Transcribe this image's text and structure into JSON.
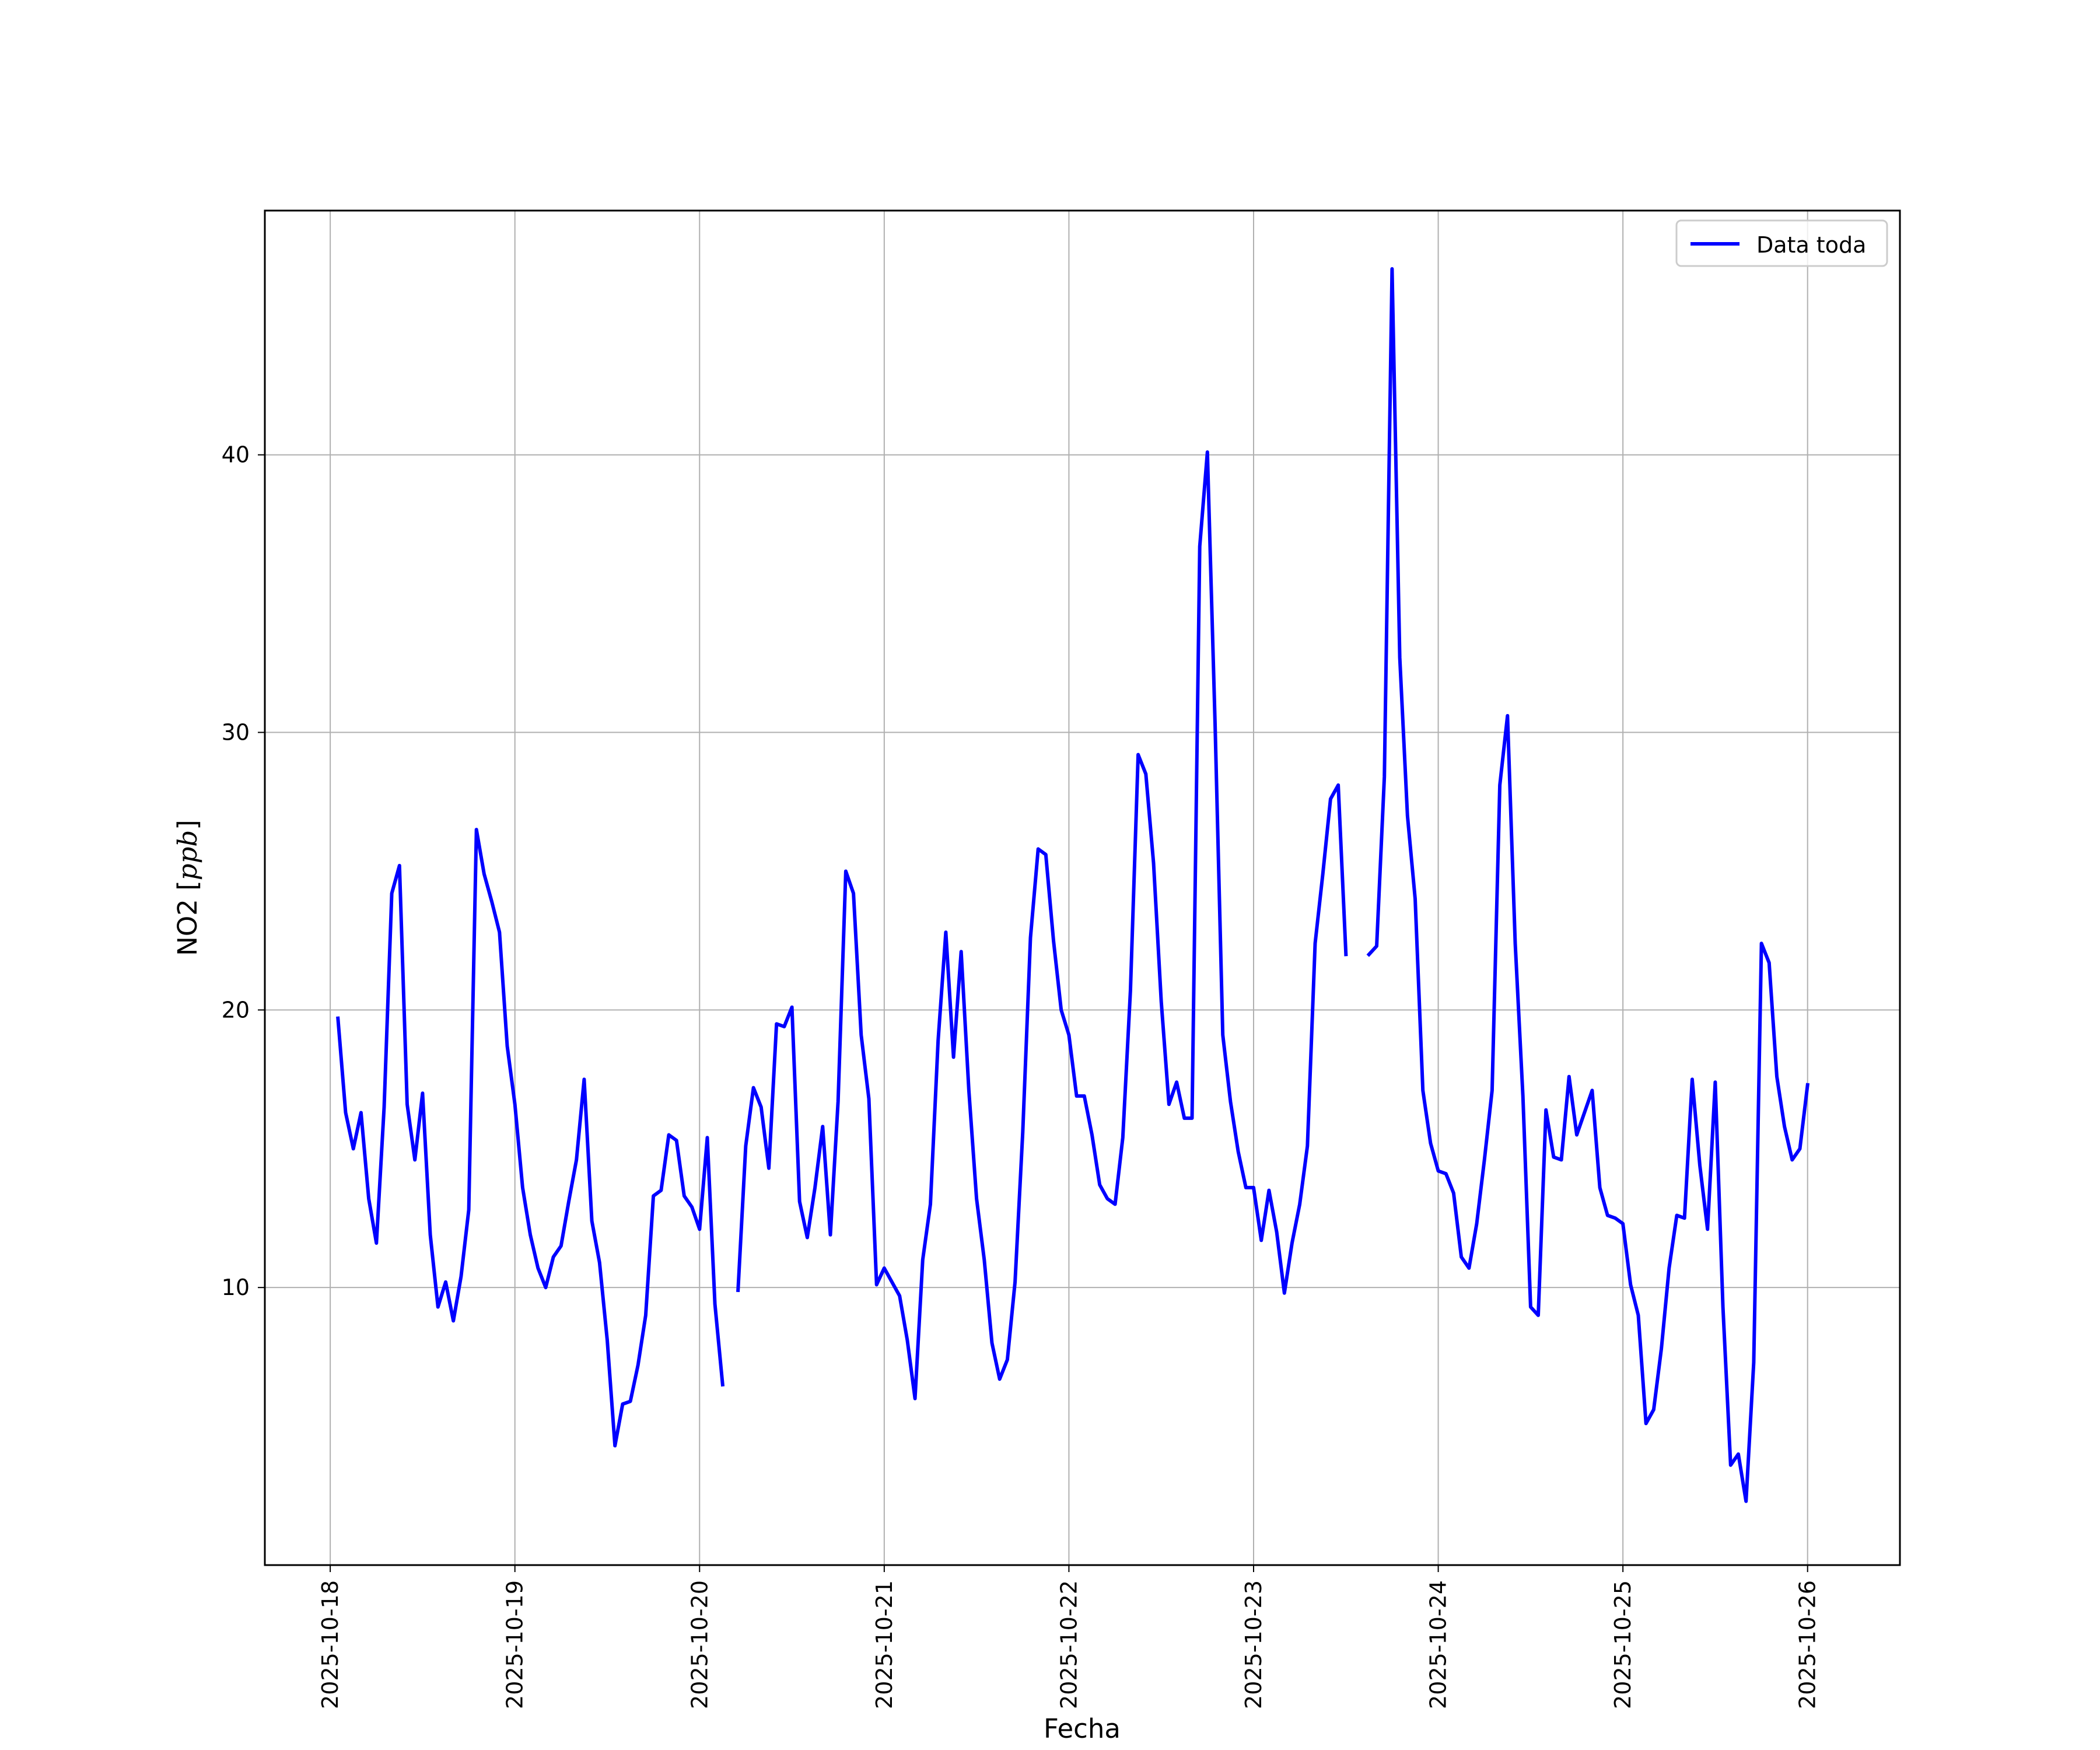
{
  "chart_data": {
    "type": "line",
    "title": "",
    "xlabel": "Fecha",
    "ylabel_main": "NO2 [",
    "ylabel_unit": "ppb",
    "ylabel_close": "]",
    "ylim": [
      0,
      48.8
    ],
    "x_range": [
      "2025-10-17 15:30",
      "2025-10-26 12:00"
    ],
    "grid": true,
    "legend_position": "top-right",
    "x_ticks": [
      "2025-10-18",
      "2025-10-19",
      "2025-10-20",
      "2025-10-21",
      "2025-10-22",
      "2025-10-23",
      "2025-10-24",
      "2025-10-25",
      "2025-10-26"
    ],
    "y_ticks": [
      "10",
      "20",
      "30",
      "40"
    ],
    "series": [
      {
        "name": "Data toda",
        "color": "#0000ff",
        "points": [
          [
            "2025-10-18 01:00",
            19.7
          ],
          [
            "2025-10-18 02:00",
            16.3
          ],
          [
            "2025-10-18 03:00",
            15.0
          ],
          [
            "2025-10-18 04:00",
            16.3
          ],
          [
            "2025-10-18 05:00",
            13.2
          ],
          [
            "2025-10-18 06:00",
            11.6
          ],
          [
            "2025-10-18 07:00",
            16.5
          ],
          [
            "2025-10-18 08:00",
            24.2
          ],
          [
            "2025-10-18 09:00",
            25.2
          ],
          [
            "2025-10-18 10:00",
            16.6
          ],
          [
            "2025-10-18 11:00",
            14.6
          ],
          [
            "2025-10-18 12:00",
            17.0
          ],
          [
            "2025-10-18 13:00",
            11.9
          ],
          [
            "2025-10-18 14:00",
            9.3
          ],
          [
            "2025-10-18 15:00",
            10.2
          ],
          [
            "2025-10-18 16:00",
            8.8
          ],
          [
            "2025-10-18 17:00",
            10.4
          ],
          [
            "2025-10-18 18:00",
            12.8
          ],
          [
            "2025-10-18 19:00",
            26.5
          ],
          [
            "2025-10-18 20:00",
            24.9
          ],
          [
            "2025-10-18 21:00",
            23.9
          ],
          [
            "2025-10-18 22:00",
            22.8
          ],
          [
            "2025-10-18 23:00",
            18.7
          ],
          [
            "2025-10-19 00:00",
            16.6
          ],
          [
            "2025-10-19 01:00",
            13.6
          ],
          [
            "2025-10-19 02:00",
            11.9
          ],
          [
            "2025-10-19 03:00",
            10.7
          ],
          [
            "2025-10-19 04:00",
            10.0
          ],
          [
            "2025-10-19 05:00",
            11.1
          ],
          [
            "2025-10-19 06:00",
            11.5
          ],
          [
            "2025-10-19 07:00",
            13.1
          ],
          [
            "2025-10-19 08:00",
            14.6
          ],
          [
            "2025-10-19 09:00",
            17.5
          ],
          [
            "2025-10-19 10:00",
            12.4
          ],
          [
            "2025-10-19 11:00",
            10.9
          ],
          [
            "2025-10-19 12:00",
            8.1
          ],
          [
            "2025-10-19 13:00",
            4.3
          ],
          [
            "2025-10-19 14:00",
            5.8
          ],
          [
            "2025-10-19 15:00",
            5.9
          ],
          [
            "2025-10-19 16:00",
            7.2
          ],
          [
            "2025-10-19 17:00",
            9.0
          ],
          [
            "2025-10-19 18:00",
            13.3
          ],
          [
            "2025-10-19 19:00",
            13.5
          ],
          [
            "2025-10-19 20:00",
            15.5
          ],
          [
            "2025-10-19 21:00",
            15.3
          ],
          [
            "2025-10-19 22:00",
            13.3
          ],
          [
            "2025-10-19 23:00",
            12.9
          ],
          [
            "2025-10-20 00:00",
            12.1
          ],
          [
            "2025-10-20 01:00",
            15.4
          ],
          [
            "2025-10-20 02:00",
            9.4
          ],
          [
            "2025-10-20 03:00",
            6.5
          ],
          [
            null,
            null
          ],
          [
            "2025-10-20 05:00",
            9.9
          ],
          [
            "2025-10-20 06:00",
            15.1
          ],
          [
            "2025-10-20 07:00",
            17.2
          ],
          [
            "2025-10-20 08:00",
            16.5
          ],
          [
            "2025-10-20 09:00",
            14.3
          ],
          [
            "2025-10-20 10:00",
            19.5
          ],
          [
            "2025-10-20 11:00",
            19.4
          ],
          [
            "2025-10-20 12:00",
            20.1
          ],
          [
            "2025-10-20 13:00",
            13.1
          ],
          [
            "2025-10-20 14:00",
            11.8
          ],
          [
            "2025-10-20 15:00",
            13.6
          ],
          [
            "2025-10-20 16:00",
            15.8
          ],
          [
            "2025-10-20 17:00",
            11.9
          ],
          [
            "2025-10-20 18:00",
            16.7
          ],
          [
            "2025-10-20 19:00",
            25.0
          ],
          [
            "2025-10-20 20:00",
            24.2
          ],
          [
            "2025-10-20 21:00",
            19.1
          ],
          [
            "2025-10-20 22:00",
            16.8
          ],
          [
            "2025-10-20 23:00",
            10.1
          ],
          [
            "2025-10-21 00:00",
            10.7
          ],
          [
            "2025-10-21 01:00",
            10.2
          ],
          [
            "2025-10-21 02:00",
            9.7
          ],
          [
            "2025-10-21 03:00",
            8.1
          ],
          [
            "2025-10-21 04:00",
            6.0
          ],
          [
            "2025-10-21 05:00",
            11.0
          ],
          [
            "2025-10-21 06:00",
            13.0
          ],
          [
            "2025-10-21 07:00",
            18.9
          ],
          [
            "2025-10-21 08:00",
            22.8
          ],
          [
            "2025-10-21 09:00",
            18.3
          ],
          [
            "2025-10-21 10:00",
            22.1
          ],
          [
            "2025-10-21 11:00",
            17.1
          ],
          [
            "2025-10-21 12:00",
            13.2
          ],
          [
            "2025-10-21 13:00",
            11.0
          ],
          [
            "2025-10-21 14:00",
            8.0
          ],
          [
            "2025-10-21 15:00",
            6.7
          ],
          [
            "2025-10-21 16:00",
            7.4
          ],
          [
            "2025-10-21 17:00",
            10.2
          ],
          [
            "2025-10-21 18:00",
            15.6
          ],
          [
            "2025-10-21 19:00",
            22.6
          ],
          [
            "2025-10-21 20:00",
            25.8
          ],
          [
            "2025-10-21 21:00",
            25.6
          ],
          [
            "2025-10-21 22:00",
            22.5
          ],
          [
            "2025-10-21 23:00",
            20.0
          ],
          [
            "2025-10-22 00:00",
            19.1
          ],
          [
            "2025-10-22 01:00",
            16.9
          ],
          [
            "2025-10-22 02:00",
            16.9
          ],
          [
            "2025-10-22 03:00",
            15.5
          ],
          [
            "2025-10-22 04:00",
            13.7
          ],
          [
            "2025-10-22 05:00",
            13.2
          ],
          [
            "2025-10-22 06:00",
            13.0
          ],
          [
            "2025-10-22 07:00",
            15.4
          ],
          [
            "2025-10-22 08:00",
            20.7
          ],
          [
            "2025-10-22 09:00",
            29.2
          ],
          [
            "2025-10-22 10:00",
            28.5
          ],
          [
            "2025-10-22 11:00",
            25.3
          ],
          [
            "2025-10-22 12:00",
            20.3
          ],
          [
            "2025-10-22 13:00",
            16.6
          ],
          [
            "2025-10-22 14:00",
            17.4
          ],
          [
            "2025-10-22 15:00",
            16.1
          ],
          [
            "2025-10-22 16:00",
            16.1
          ],
          [
            "2025-10-22 17:00",
            36.7
          ],
          [
            "2025-10-22 18:00",
            40.1
          ],
          [
            "2025-10-22 19:00",
            30.3
          ],
          [
            "2025-10-22 20:00",
            19.1
          ],
          [
            "2025-10-22 21:00",
            16.7
          ],
          [
            "2025-10-22 22:00",
            14.9
          ],
          [
            "2025-10-22 23:00",
            13.6
          ],
          [
            "2025-10-23 00:00",
            13.6
          ],
          [
            "2025-10-23 01:00",
            11.7
          ],
          [
            "2025-10-23 02:00",
            13.5
          ],
          [
            "2025-10-23 03:00",
            12.0
          ],
          [
            "2025-10-23 04:00",
            9.8
          ],
          [
            "2025-10-23 05:00",
            11.6
          ],
          [
            "2025-10-23 06:00",
            13.0
          ],
          [
            "2025-10-23 07:00",
            15.1
          ],
          [
            "2025-10-23 08:00",
            22.4
          ],
          [
            "2025-10-23 09:00",
            24.9
          ],
          [
            "2025-10-23 10:00",
            27.6
          ],
          [
            "2025-10-23 11:00",
            28.1
          ],
          [
            "2025-10-23 12:00",
            22.0
          ],
          [
            null,
            null
          ],
          [
            "2025-10-23 15:00",
            22.0
          ],
          [
            "2025-10-23 16:00",
            22.3
          ],
          [
            "2025-10-23 17:00",
            28.4
          ],
          [
            "2025-10-23 18:00",
            46.7
          ],
          [
            "2025-10-23 19:00",
            32.7
          ],
          [
            "2025-10-23 20:00",
            27.0
          ],
          [
            "2025-10-23 21:00",
            24.0
          ],
          [
            "2025-10-23 22:00",
            17.1
          ],
          [
            "2025-10-23 23:00",
            15.2
          ],
          [
            "2025-10-24 00:00",
            14.2
          ],
          [
            "2025-10-24 01:00",
            14.1
          ],
          [
            "2025-10-24 02:00",
            13.4
          ],
          [
            "2025-10-24 03:00",
            11.1
          ],
          [
            "2025-10-24 04:00",
            10.7
          ],
          [
            "2025-10-24 05:00",
            12.3
          ],
          [
            "2025-10-24 06:00",
            14.6
          ],
          [
            "2025-10-24 07:00",
            17.1
          ],
          [
            "2025-10-24 08:00",
            28.1
          ],
          [
            "2025-10-24 09:00",
            30.6
          ],
          [
            "2025-10-24 10:00",
            22.4
          ],
          [
            "2025-10-24 11:00",
            16.9
          ],
          [
            "2025-10-24 12:00",
            9.3
          ],
          [
            "2025-10-24 13:00",
            9.0
          ],
          [
            "2025-10-24 14:00",
            16.4
          ],
          [
            "2025-10-24 15:00",
            14.7
          ],
          [
            "2025-10-24 16:00",
            14.6
          ],
          [
            "2025-10-24 17:00",
            17.6
          ],
          [
            "2025-10-24 18:00",
            15.5
          ],
          [
            "2025-10-24 19:00",
            16.3
          ],
          [
            "2025-10-24 20:00",
            17.1
          ],
          [
            "2025-10-24 21:00",
            13.6
          ],
          [
            "2025-10-24 22:00",
            12.6
          ],
          [
            "2025-10-24 23:00",
            12.5
          ],
          [
            "2025-10-25 00:00",
            12.3
          ],
          [
            "2025-10-25 01:00",
            10.1
          ],
          [
            "2025-10-25 02:00",
            9.0
          ],
          [
            "2025-10-25 03:00",
            5.1
          ],
          [
            "2025-10-25 04:00",
            5.6
          ],
          [
            "2025-10-25 05:00",
            7.8
          ],
          [
            "2025-10-25 06:00",
            10.7
          ],
          [
            "2025-10-25 07:00",
            12.6
          ],
          [
            "2025-10-25 08:00",
            12.5
          ],
          [
            "2025-10-25 09:00",
            17.5
          ],
          [
            "2025-10-25 10:00",
            14.4
          ],
          [
            "2025-10-25 11:00",
            12.1
          ],
          [
            "2025-10-25 12:00",
            17.4
          ],
          [
            "2025-10-25 13:00",
            9.3
          ],
          [
            "2025-10-25 14:00",
            3.6
          ],
          [
            "2025-10-25 15:00",
            4.0
          ],
          [
            "2025-10-25 16:00",
            2.3
          ],
          [
            "2025-10-25 17:00",
            7.3
          ],
          [
            "2025-10-25 18:00",
            22.4
          ],
          [
            "2025-10-25 19:00",
            21.7
          ],
          [
            "2025-10-25 20:00",
            17.6
          ],
          [
            "2025-10-25 21:00",
            15.8
          ],
          [
            "2025-10-25 22:00",
            14.6
          ],
          [
            "2025-10-25 23:00",
            15.0
          ],
          [
            "2025-10-26 00:00",
            17.3
          ]
        ]
      }
    ]
  }
}
